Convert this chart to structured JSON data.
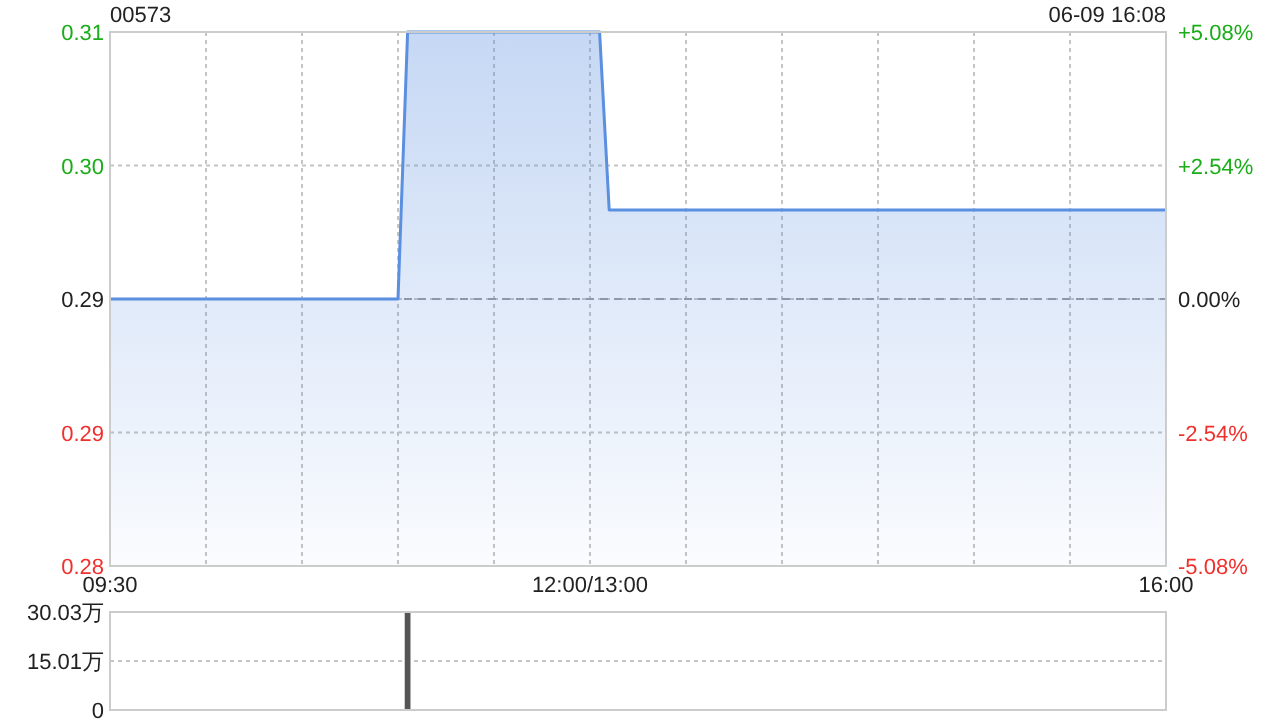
{
  "chart_data": [
    {
      "type": "area",
      "title": "00573",
      "annotations": [
        "06-09 16:08"
      ],
      "categories": [
        "09:30",
        null,
        null,
        null,
        null,
        null,
        null,
        null,
        null,
        null,
        null,
        null,
        null,
        null,
        null,
        null,
        null,
        null,
        null,
        null,
        null,
        null,
        null,
        null,
        null,
        null,
        null,
        null,
        null,
        null,
        null,
        null,
        null,
        null,
        null,
        null,
        null,
        null,
        null,
        null,
        null,
        null,
        null,
        null,
        null,
        null,
        null,
        null,
        null,
        null,
        "12:00/13:00",
        null,
        null,
        null,
        null,
        null,
        null,
        null,
        null,
        null,
        null,
        null,
        null,
        null,
        null,
        null,
        null,
        null,
        null,
        null,
        null,
        null,
        null,
        null,
        null,
        null,
        null,
        null,
        null,
        null,
        null,
        null,
        null,
        null,
        null,
        null,
        null,
        null,
        null,
        null,
        null,
        null,
        null,
        null,
        null,
        null,
        null,
        null,
        null,
        null,
        null,
        null,
        null,
        null,
        null,
        null,
        null,
        null,
        null,
        null,
        "16:00"
      ],
      "series": [
        {
          "color": "#5b8fe0",
          "values": [
            0.295,
            0.295,
            0.295,
            0.295,
            0.295,
            0.295,
            0.295,
            0.295,
            0.295,
            0.295,
            0.295,
            0.295,
            0.295,
            0.295,
            0.295,
            0.295,
            0.295,
            0.295,
            0.295,
            0.295,
            0.295,
            0.295,
            0.295,
            0.295,
            0.295,
            0.295,
            0.295,
            0.295,
            0.295,
            0.295,
            0.295,
            0.31,
            0.31,
            0.31,
            0.31,
            0.31,
            0.31,
            0.31,
            0.31,
            0.31,
            0.31,
            0.31,
            0.31,
            0.31,
            0.31,
            0.31,
            0.31,
            0.31,
            0.31,
            0.31,
            0.31,
            0.31,
            0.3,
            0.3,
            0.3,
            0.3,
            0.3,
            0.3,
            0.3,
            0.3,
            0.3,
            0.3,
            0.3,
            0.3,
            0.3,
            0.3,
            0.3,
            0.3,
            0.3,
            0.3,
            0.3,
            0.3,
            0.3,
            0.3,
            0.3,
            0.3,
            0.3,
            0.3,
            0.3,
            0.3,
            0.3,
            0.3,
            0.3,
            0.3,
            0.3,
            0.3,
            0.3,
            0.3,
            0.3,
            0.3,
            0.3,
            0.3,
            0.3,
            0.3,
            0.3,
            0.3,
            0.3,
            0.3,
            0.3,
            0.3,
            0.3,
            0.3,
            0.3,
            0.3,
            0.3,
            0.3,
            0.3,
            0.3,
            0.3,
            0.3,
            0.3
          ]
        }
      ],
      "ylim": [
        0.28,
        0.31
      ],
      "yticks": [
        0.28,
        {
          "value": 0.2875,
          "label": "0.29"
        },
        {
          "value": 0.295,
          "label": "0.29"
        },
        {
          "value": 0.3025,
          "label": "0.30"
        },
        0.31
      ],
      "y2lim": [
        -5.08,
        5.08
      ],
      "y2ticks": [
        {
          "value": -5.08,
          "label": "-5.08%"
        },
        {
          "value": -2.54,
          "label": "-2.54%"
        },
        {
          "value": 0,
          "label": "0.00%"
        },
        {
          "value": 2.54,
          "label": "+2.54%"
        },
        {
          "value": 5.08,
          "label": "+5.08%"
        }
      ],
      "ref_lines": [
        {
          "axis": "y",
          "value": 0.295,
          "line_style": "dashed",
          "color": "#999999"
        }
      ],
      "grid": true
    },
    {
      "type": "bar",
      "categories": [
        null,
        null,
        null,
        null,
        null,
        null,
        null,
        null,
        null,
        null,
        null,
        null,
        null,
        null,
        null,
        null,
        null,
        null,
        null,
        null,
        null,
        null,
        null,
        null,
        null,
        null,
        null,
        null,
        null,
        null,
        null,
        null,
        null,
        null,
        null,
        null,
        null,
        null,
        null,
        null,
        null,
        null,
        null,
        null,
        null,
        null,
        null,
        null,
        null,
        null,
        null,
        null,
        null,
        null,
        null,
        null,
        null,
        null,
        null,
        null,
        null,
        null,
        null,
        null,
        null,
        null,
        null,
        null,
        null,
        null,
        null,
        null,
        null,
        null,
        null,
        null,
        null,
        null,
        null,
        null,
        null,
        null,
        null,
        null,
        null,
        null,
        null,
        null,
        null,
        null,
        null,
        null,
        null,
        null,
        null,
        null,
        null,
        null,
        null,
        null,
        null,
        null,
        null,
        null,
        null,
        null,
        null,
        null,
        null,
        null,
        null
      ],
      "series": [
        {
          "color": "#555555",
          "values": [
            null,
            null,
            null,
            null,
            null,
            null,
            null,
            null,
            null,
            null,
            null,
            null,
            null,
            null,
            null,
            null,
            null,
            null,
            null,
            null,
            null,
            null,
            null,
            null,
            null,
            null,
            null,
            null,
            null,
            null,
            null,
            30.03,
            null,
            null,
            null,
            null,
            null,
            null,
            null,
            null,
            null,
            null,
            null,
            null,
            null,
            null,
            null,
            null,
            null,
            null,
            null,
            null,
            null,
            null,
            null,
            null,
            null,
            null,
            null,
            null,
            null,
            null,
            null,
            null,
            null,
            null,
            null,
            null,
            null,
            null,
            null,
            null,
            null,
            null,
            null,
            null,
            null,
            null,
            null,
            null,
            null,
            null,
            null,
            null,
            null,
            null,
            null,
            null,
            null,
            null,
            null,
            null,
            null,
            null,
            null,
            null,
            null,
            null,
            null,
            null,
            null,
            null,
            null,
            null,
            null,
            null,
            null,
            null,
            null,
            null,
            null
          ]
        }
      ],
      "ylim": [
        0,
        30.03
      ],
      "yticks": [
        0,
        {
          "value": 15.01,
          "label": "15.01万"
        },
        {
          "value": 30.03,
          "label": "30.03万"
        }
      ],
      "tick_labels": "y",
      "grid": "y"
    }
  ]
}
